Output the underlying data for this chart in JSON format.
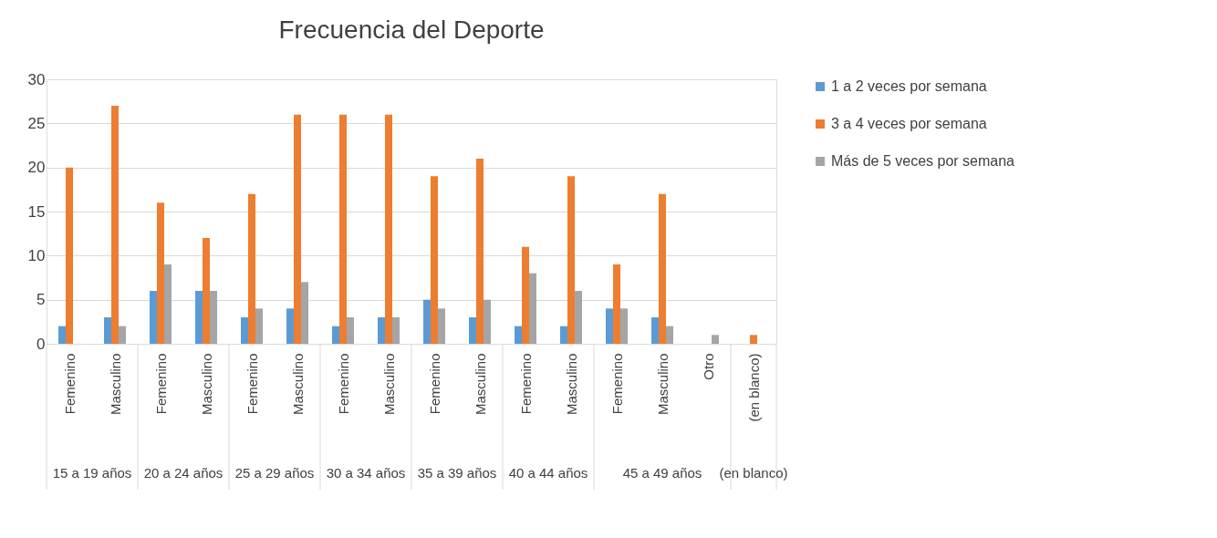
{
  "chart_data": {
    "type": "bar",
    "title": "Frecuencia del Deporte",
    "categories": [
      "Femenino",
      "Masculino",
      "Femenino",
      "Masculino",
      "Femenino",
      "Masculino",
      "Femenino",
      "Masculino",
      "Femenino",
      "Masculino",
      "Femenino",
      "Masculino",
      "Femenino",
      "Masculino",
      "Otro",
      "(en blanco)"
    ],
    "series": [
      {
        "name": "1 a 2 veces por semana",
        "color": "#5b9bd5",
        "values": [
          2,
          3,
          6,
          6,
          3,
          4,
          2,
          3,
          5,
          3,
          2,
          2,
          4,
          3,
          null,
          null
        ]
      },
      {
        "name": "3 a 4 veces por semana",
        "color": "#ed7d31",
        "values": [
          20,
          27,
          16,
          12,
          17,
          26,
          26,
          26,
          19,
          21,
          11,
          19,
          9,
          17,
          null,
          1
        ]
      },
      {
        "name": "Más de 5 veces por semana",
        "color": "#a5a5a5",
        "values": [
          null,
          2,
          9,
          6,
          4,
          7,
          3,
          3,
          4,
          5,
          8,
          6,
          4,
          2,
          1,
          null
        ]
      }
    ],
    "annotations": [
      "15 a 19 años",
      "20 a 24 años",
      "25 a 29 años",
      "30 a 34 años",
      "35 a 39 años",
      "40 a 44 años",
      "45 a 49 años",
      "(en blanco)"
    ],
    "ylim": [
      0,
      30
    ],
    "yticks": [
      0,
      5,
      10,
      15,
      20,
      25,
      30
    ],
    "grid": "y",
    "legend": "right"
  }
}
